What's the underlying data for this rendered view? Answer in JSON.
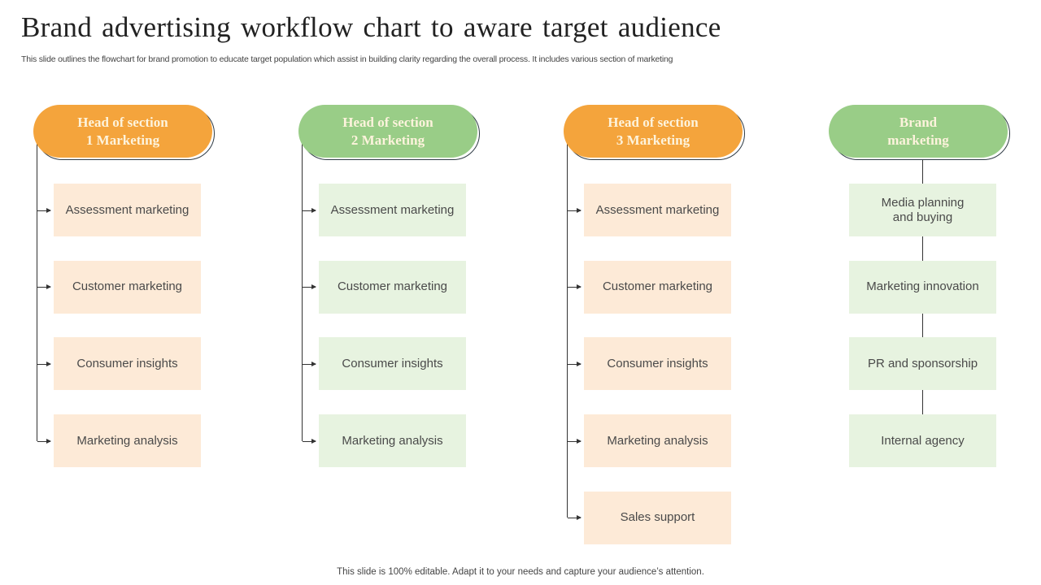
{
  "title": "Brand advertising workflow chart to aware target audience",
  "subtitle": "This slide outlines the flowchart for brand promotion to educate target population which assist in building clarity regarding the overall process. It includes various section of marketing",
  "footer": "This slide is 100% editable. Adapt it to your needs and capture your audience’s attention.",
  "colors": {
    "orange": "#F4A43C",
    "green": "#99CD87",
    "orange_box": "#FDEAD7",
    "green_box": "#E7F3E0"
  },
  "columns": [
    {
      "heading": "Head of section\n1 Marketing",
      "theme": "orange",
      "connector": "arrows",
      "items": [
        "Assessment marketing",
        "Customer marketing",
        "Consumer insights",
        "Marketing analysis"
      ]
    },
    {
      "heading": "Head of section\n2 Marketing",
      "theme": "green",
      "connector": "arrows",
      "items": [
        "Assessment marketing",
        "Customer marketing",
        "Consumer insights",
        "Marketing analysis"
      ]
    },
    {
      "heading": "Head of section\n3 Marketing",
      "theme": "orange",
      "connector": "arrows",
      "items": [
        "Assessment marketing",
        "Customer marketing",
        "Consumer insights",
        "Marketing analysis",
        "Sales support"
      ]
    },
    {
      "heading": "Brand\nmarketing",
      "theme": "green",
      "connector": "vertical",
      "items": [
        "Media planning\nand buying",
        "Marketing innovation",
        "PR and sponsorship",
        "Internal agency"
      ]
    }
  ]
}
